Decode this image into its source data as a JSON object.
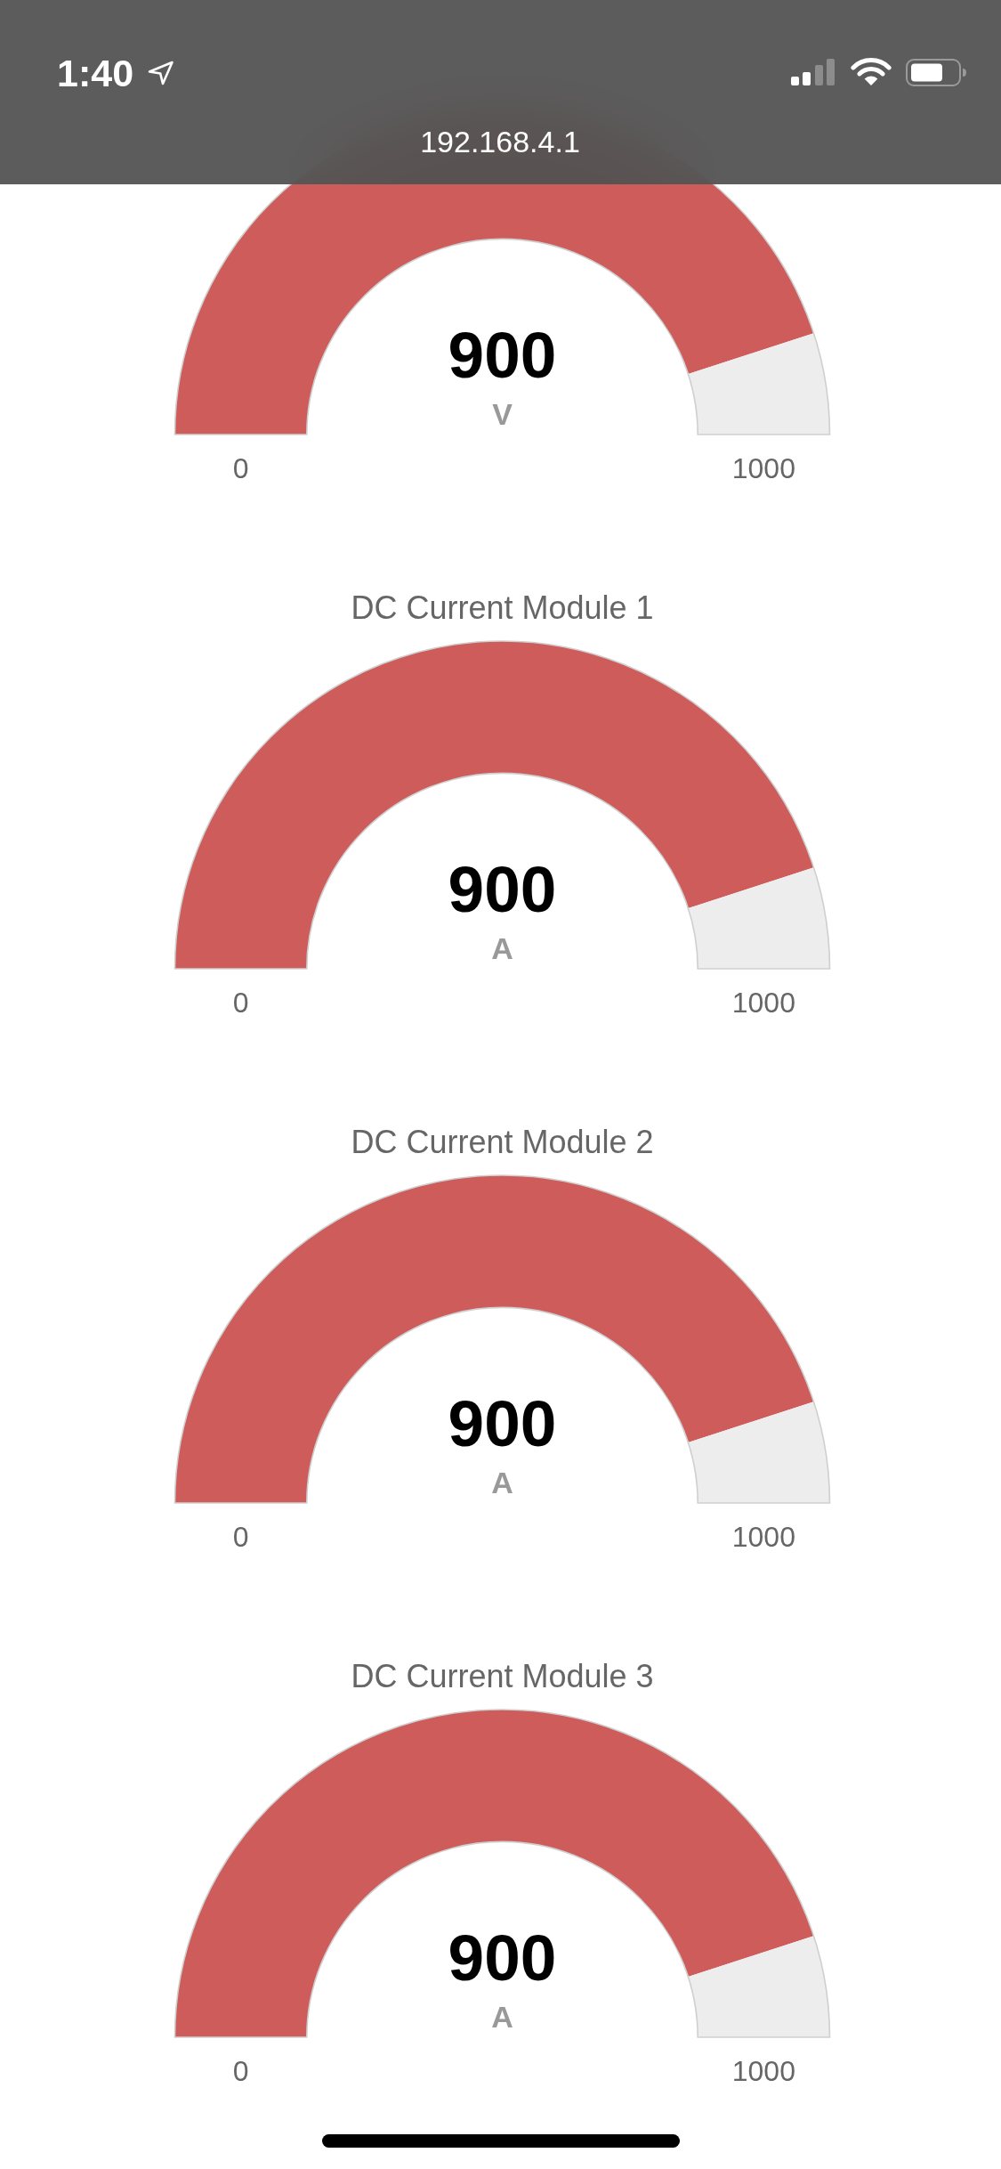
{
  "chart_data": [
    {
      "type": "other",
      "annotations": [
        "1:40",
        "192.168.4.1"
      ]
    },
    {
      "type": "donut",
      "categories": [
        null,
        null
      ],
      "values": [
        900,
        100
      ],
      "colors": [
        "#cd5c5a",
        "#ededed"
      ],
      "value_labels": [
        "900",
        null
      ],
      "annotations": [
        "0",
        "1000",
        "V"
      ]
    },
    {
      "type": "donut",
      "title": "DC Current Module 1",
      "categories": [
        null,
        null
      ],
      "values": [
        900,
        100
      ],
      "colors": [
        "#cd5c5a",
        "#ededed"
      ],
      "value_labels": [
        "900",
        null
      ],
      "annotations": [
        "0",
        "1000",
        "A"
      ]
    },
    {
      "type": "donut",
      "title": "DC Current Module 2",
      "categories": [
        null,
        null
      ],
      "values": [
        900,
        100
      ],
      "colors": [
        "#cd5c5a",
        "#ededed"
      ],
      "value_labels": [
        "900",
        null
      ],
      "annotations": [
        "0",
        "1000",
        "A"
      ]
    },
    {
      "type": "donut",
      "title": "DC Current Module 3",
      "categories": [
        null,
        null
      ],
      "values": [
        900,
        100
      ],
      "colors": [
        "#cd5c5a",
        "#ededed"
      ],
      "value_labels": [
        "900",
        null
      ],
      "annotations": [
        "0",
        "1000",
        "A"
      ]
    }
  ]
}
